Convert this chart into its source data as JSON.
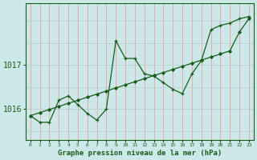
{
  "xlabel": "Graphe pression niveau de la mer (hPa)",
  "background_color": "#cce8e8",
  "grid_color_v": "#f08080",
  "grid_color_h": "#b8d8d8",
  "line_color": "#1a5c1a",
  "x_ticks": [
    0,
    1,
    2,
    3,
    4,
    5,
    6,
    7,
    8,
    9,
    10,
    11,
    12,
    13,
    14,
    15,
    16,
    17,
    18,
    19,
    20,
    21,
    22,
    23
  ],
  "ytick_positions": [
    1016,
    1017
  ],
  "ylim": [
    1015.3,
    1018.4
  ],
  "xlim": [
    -0.5,
    23.5
  ],
  "series1_x": [
    0,
    1,
    2,
    3,
    4,
    5,
    6,
    7,
    8,
    9,
    10,
    11,
    12,
    13,
    14,
    15,
    16,
    17,
    18,
    19,
    20,
    21,
    22,
    23
  ],
  "series1_y": [
    1015.85,
    1015.7,
    1015.7,
    1016.2,
    1016.3,
    1016.1,
    1015.9,
    1015.75,
    1016.0,
    1017.55,
    1017.15,
    1017.15,
    1016.8,
    1016.75,
    1016.6,
    1016.45,
    1016.35,
    1016.8,
    1017.1,
    1017.8,
    1017.9,
    1017.95,
    1018.05,
    1018.1
  ],
  "series2_x": [
    0,
    1,
    2,
    3,
    4,
    5,
    6,
    7,
    8,
    9,
    10,
    11,
    12,
    13,
    14,
    15,
    16,
    17,
    18,
    19,
    20,
    21,
    22,
    23
  ],
  "series2_y": [
    1015.85,
    1015.92,
    1015.99,
    1016.06,
    1016.13,
    1016.2,
    1016.27,
    1016.34,
    1016.41,
    1016.48,
    1016.55,
    1016.62,
    1016.69,
    1016.76,
    1016.83,
    1016.9,
    1016.97,
    1017.04,
    1017.11,
    1017.18,
    1017.25,
    1017.32,
    1017.75,
    1018.05
  ]
}
